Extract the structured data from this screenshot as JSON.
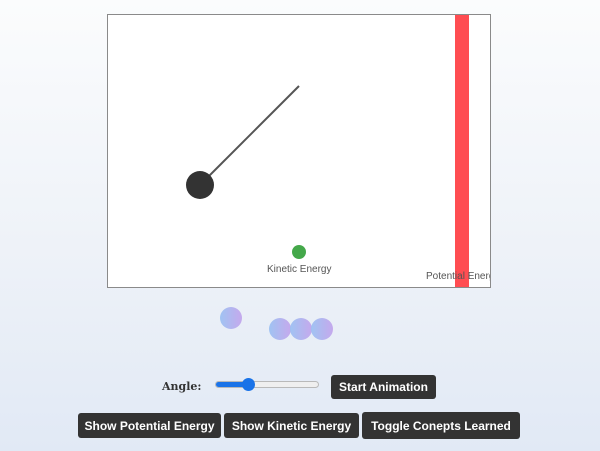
{
  "simulation": {
    "kinetic_label": "Kinetic Energy",
    "potential_label": "Potential Energy",
    "potential_energy_fraction": 1.0,
    "colors": {
      "pendulum": "#333333",
      "potential_bar": "#ff4d52",
      "kinetic_dot": "#44a84a"
    }
  },
  "concepts": {
    "bubble_count": 4
  },
  "controls": {
    "angle_label": "Angle:",
    "angle_slider_fraction": 0.3,
    "start_label": "Start Animation",
    "show_potential_label": "Show Potential Energy",
    "show_kinetic_label": "Show Kinetic Energy",
    "toggle_concepts_label": "Toggle Conepts Learned",
    "accent_color": "#1a73e8"
  }
}
